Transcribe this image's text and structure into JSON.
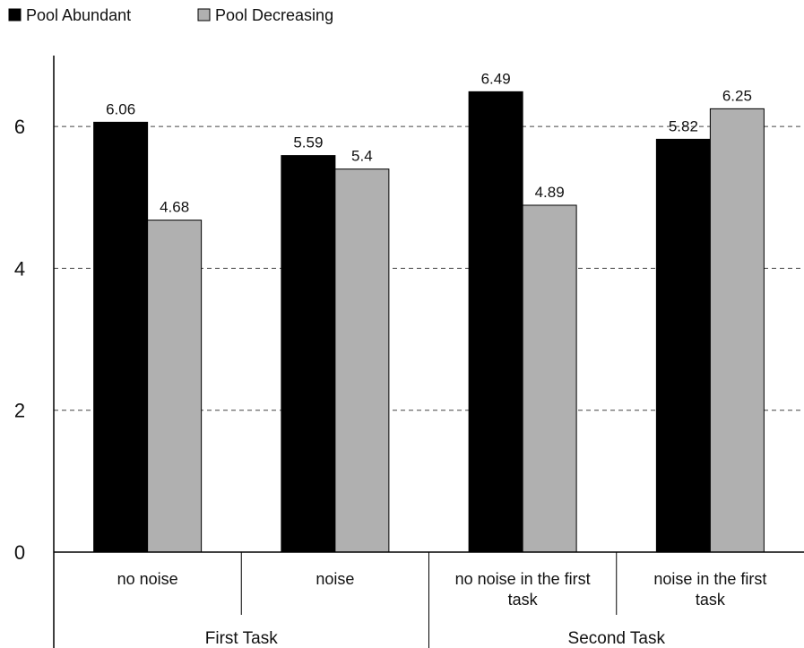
{
  "chart_data": {
    "type": "bar",
    "categories": [
      "no noise",
      "noise",
      "no noise in the first task",
      "noise in the first task"
    ],
    "category_label_lines": [
      [
        "no noise"
      ],
      [
        "noise"
      ],
      [
        "no noise in the first",
        "task"
      ],
      [
        "noise in the first",
        "task"
      ]
    ],
    "groups": [
      {
        "label": "First Task",
        "categories": [
          0,
          1
        ]
      },
      {
        "label": "Second Task",
        "categories": [
          2,
          3
        ]
      }
    ],
    "series": [
      {
        "name": "Pool Abundant",
        "values": [
          6.06,
          5.59,
          6.49,
          5.82
        ],
        "color": "#000000"
      },
      {
        "name": "Pool Decreasing",
        "values": [
          4.68,
          5.4,
          4.89,
          6.25
        ],
        "color": "#b0b0b0"
      }
    ],
    "value_labels": [
      [
        "6.06",
        "5.59",
        "6.49",
        "5.82"
      ],
      [
        "4.68",
        "5.4",
        "4.89",
        "6.25"
      ]
    ],
    "y_ticks": [
      0,
      2,
      4,
      6
    ],
    "ylim": [
      0,
      7
    ],
    "grid": "dashed horizontal at ticks 2, 4, 6",
    "legend": "top-left",
    "title": "",
    "xlabel": "",
    "ylabel": ""
  }
}
